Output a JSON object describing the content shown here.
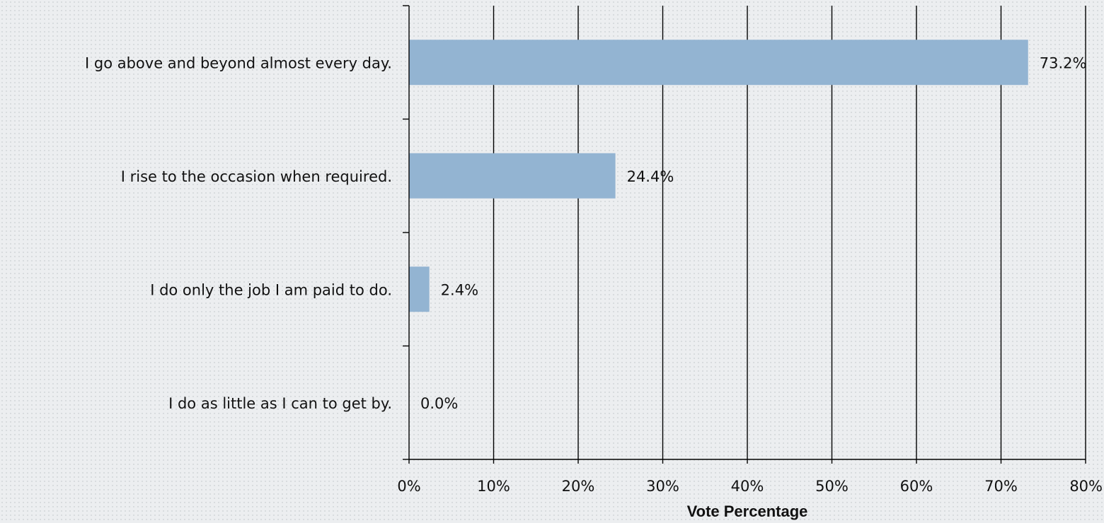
{
  "chart_data": {
    "type": "bar",
    "orientation": "horizontal",
    "categories": [
      "I go above and beyond almost every day.",
      "I rise to the occasion when required.",
      "I do only the job I am paid to do.",
      "I do as little as I can to get by."
    ],
    "values": [
      73.2,
      24.4,
      2.4,
      0.0
    ],
    "value_labels": [
      "73.2%",
      "24.4%",
      "2.4%",
      "0.0%"
    ],
    "xlabel": "Vote Percentage",
    "ylabel": "",
    "title": "",
    "xlim": [
      0,
      80
    ],
    "x_ticks": [
      0,
      10,
      20,
      30,
      40,
      50,
      60,
      70,
      80
    ],
    "x_tick_labels": [
      "0%",
      "10%",
      "20%",
      "30%",
      "40%",
      "50%",
      "60%",
      "70%",
      "80%"
    ],
    "grid": "vertical",
    "legend": "none",
    "colors": {
      "bar": "#93b4d2",
      "gridline": "#000000",
      "axis": "#000000"
    }
  }
}
